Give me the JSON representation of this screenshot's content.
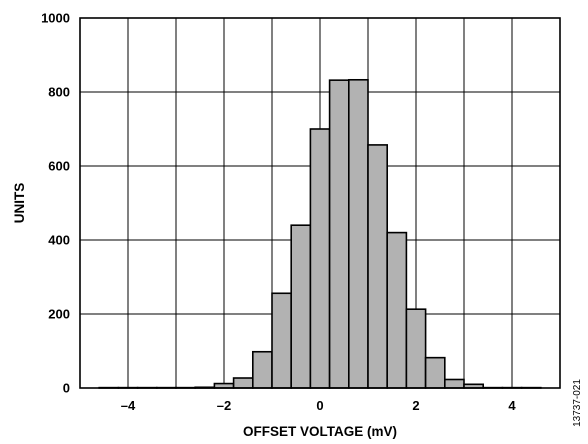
{
  "chart_data": {
    "type": "bar",
    "xlabel": "OFFSET VOLTAGE (mV)",
    "ylabel": "UNITS",
    "xlim": [
      -5,
      5
    ],
    "ylim": [
      0,
      1000
    ],
    "xticks": [
      -4,
      -2,
      0,
      2,
      4
    ],
    "xtick_labels": [
      "–4",
      "–2",
      "0",
      "2",
      "4"
    ],
    "yticks": [
      0,
      200,
      400,
      600,
      800,
      1000
    ],
    "ytick_labels": [
      "0",
      "200",
      "400",
      "600",
      "800",
      "1000"
    ],
    "grid": true,
    "bin_width": 0.4,
    "bins": [
      {
        "x0": -4.6,
        "value": 1
      },
      {
        "x0": -4.2,
        "value": 1
      },
      {
        "x0": -3.8,
        "value": 1
      },
      {
        "x0": -3.4,
        "value": 1
      },
      {
        "x0": -3.0,
        "value": 1
      },
      {
        "x0": -2.6,
        "value": 2
      },
      {
        "x0": -2.2,
        "value": 12
      },
      {
        "x0": -1.8,
        "value": 27
      },
      {
        "x0": -1.4,
        "value": 98
      },
      {
        "x0": -1.0,
        "value": 256
      },
      {
        "x0": -0.6,
        "value": 440
      },
      {
        "x0": -0.2,
        "value": 700
      },
      {
        "x0": 0.2,
        "value": 832
      },
      {
        "x0": 0.6,
        "value": 833
      },
      {
        "x0": 1.0,
        "value": 657
      },
      {
        "x0": 1.4,
        "value": 420
      },
      {
        "x0": 1.8,
        "value": 213
      },
      {
        "x0": 2.2,
        "value": 82
      },
      {
        "x0": 2.6,
        "value": 23
      },
      {
        "x0": 3.0,
        "value": 10
      },
      {
        "x0": 3.4,
        "value": 1
      },
      {
        "x0": 3.8,
        "value": 1
      },
      {
        "x0": 4.2,
        "value": 1
      }
    ],
    "bar_fill": "#b2b2b2",
    "bar_stroke": "#000000"
  },
  "figure_id": "13737-021"
}
